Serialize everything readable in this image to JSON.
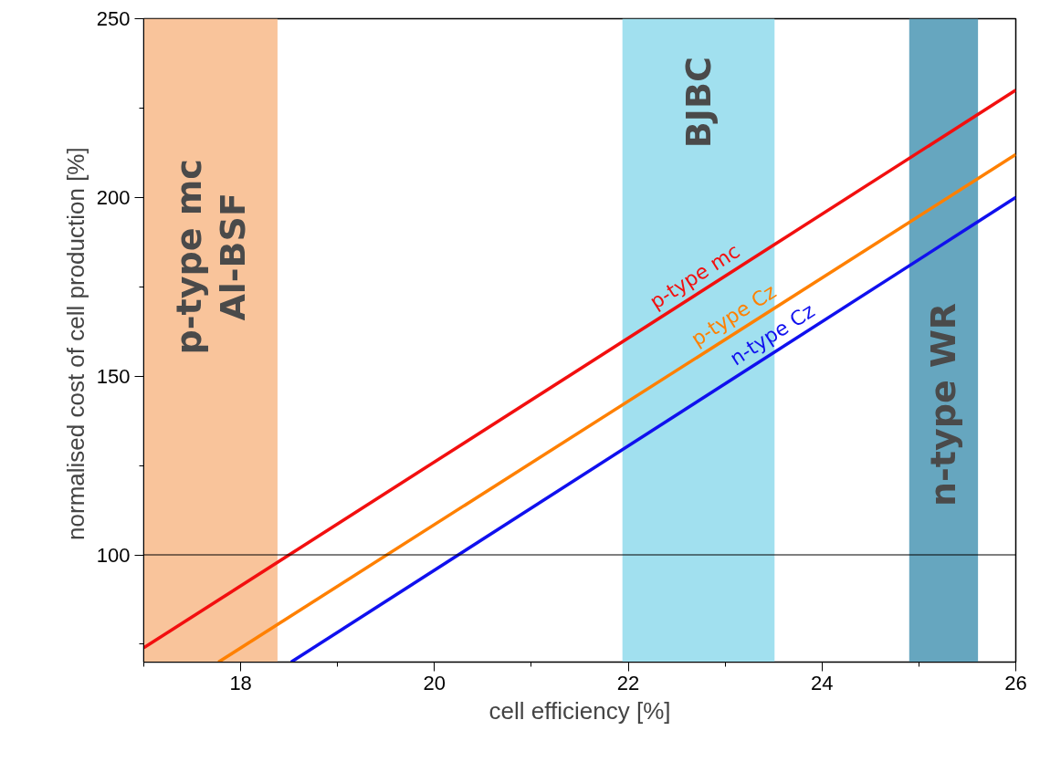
{
  "chart_data": {
    "type": "line",
    "xlabel": "cell efficiency [%]",
    "ylabel": "normalised cost of cell production  [%]",
    "xlim": [
      17,
      26
    ],
    "ylim": [
      70,
      250
    ],
    "xticks": [
      18,
      20,
      22,
      24,
      26
    ],
    "yticks": [
      100,
      150,
      200,
      250
    ],
    "grid": false,
    "line_style": "solid",
    "marker": "none",
    "series": [
      {
        "name": "p-type mc",
        "color": "#f20f0f",
        "x": [
          17,
          26
        ],
        "values": [
          74,
          230
        ]
      },
      {
        "name": "p-type Cz",
        "color": "#ff8000",
        "x": [
          17.77,
          26
        ],
        "values": [
          70,
          212
        ]
      },
      {
        "name": "n-type Cz",
        "color": "#1010ee",
        "x": [
          18.52,
          26
        ],
        "values": [
          70,
          200
        ]
      }
    ],
    "bands": [
      {
        "axis": "x",
        "from": 17,
        "to": 18.38,
        "label": "p-type mc\nAl-BSF",
        "color": "#f9c49b"
      },
      {
        "axis": "x",
        "from": 21.94,
        "to": 23.51,
        "label": "BJBC",
        "color": "#a1e0ef"
      },
      {
        "axis": "x",
        "from": 24.9,
        "to": 25.61,
        "label": "n-type WR",
        "color": "#66a6bf"
      }
    ],
    "ref_lines": [
      {
        "axis": "y",
        "value": 100,
        "color": "#000000"
      }
    ]
  }
}
